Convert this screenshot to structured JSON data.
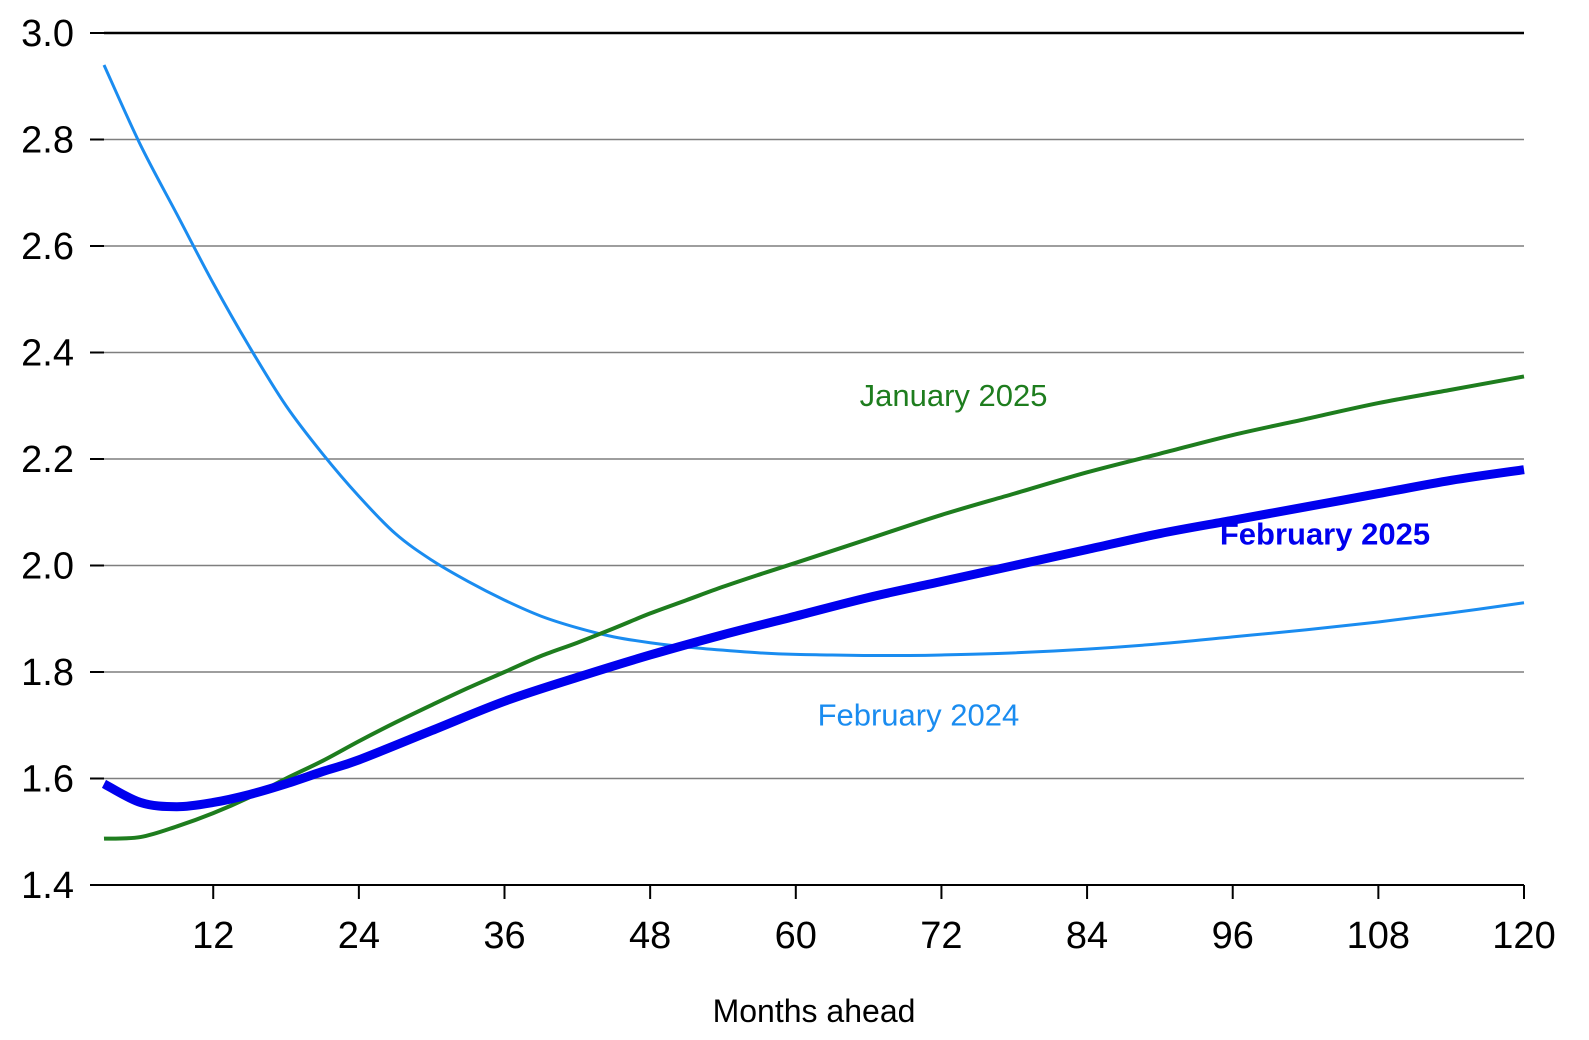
{
  "chart_data": {
    "type": "line",
    "title": "",
    "xlabel": "Months ahead",
    "ylabel": "",
    "xlim": [
      3,
      120
    ],
    "ylim": [
      1.4,
      3.0
    ],
    "x_ticks": [
      12,
      24,
      36,
      48,
      60,
      72,
      84,
      96,
      108,
      120
    ],
    "x_tick_labels": [
      "12",
      "24",
      "36",
      "48",
      "60",
      "72",
      "84",
      "96",
      "108",
      "120"
    ],
    "y_ticks": [
      1.4,
      1.6,
      1.8,
      2.0,
      2.2,
      2.4,
      2.6,
      2.8,
      3.0
    ],
    "y_tick_labels": [
      "1.4",
      "1.6",
      "1.8",
      "2.0",
      "2.2",
      "2.4",
      "2.6",
      "2.8",
      "3.0"
    ],
    "grid": true,
    "legend": "inline labels",
    "series": [
      {
        "name": "February 2024",
        "color": "#1a8cf0",
        "emphasis": "thin",
        "x": [
          3,
          6,
          9,
          12,
          15,
          18,
          21,
          24,
          27,
          30,
          33,
          36,
          39,
          42,
          45,
          48,
          51,
          54,
          57,
          60,
          63,
          66,
          69,
          72,
          78,
          84,
          90,
          96,
          102,
          108,
          114,
          120
        ],
        "values": [
          2.94,
          2.79,
          2.66,
          2.53,
          2.41,
          2.3,
          2.21,
          2.13,
          2.06,
          2.01,
          1.97,
          1.935,
          1.905,
          1.883,
          1.866,
          1.855,
          1.847,
          1.841,
          1.836,
          1.833,
          1.832,
          1.831,
          1.831,
          1.832,
          1.836,
          1.843,
          1.853,
          1.866,
          1.879,
          1.894,
          1.911,
          1.93
        ]
      },
      {
        "name": "January 2025",
        "color": "#1e7d1e",
        "emphasis": "medium",
        "x": [
          3,
          6,
          9,
          12,
          15,
          18,
          21,
          24,
          27,
          30,
          33,
          36,
          39,
          42,
          45,
          48,
          51,
          54,
          57,
          60,
          66,
          72,
          78,
          84,
          90,
          96,
          102,
          108,
          114,
          120
        ],
        "values": [
          1.487,
          1.49,
          1.51,
          1.535,
          1.565,
          1.6,
          1.633,
          1.67,
          1.705,
          1.738,
          1.77,
          1.8,
          1.83,
          1.855,
          1.882,
          1.91,
          1.935,
          1.96,
          1.983,
          2.005,
          2.05,
          2.095,
          2.135,
          2.175,
          2.21,
          2.245,
          2.275,
          2.305,
          2.33,
          2.355
        ]
      },
      {
        "name": "February 2025",
        "color": "#0000ee",
        "emphasis": "thick",
        "x": [
          3,
          6,
          9,
          12,
          15,
          18,
          21,
          24,
          30,
          36,
          42,
          48,
          54,
          60,
          66,
          72,
          78,
          84,
          90,
          96,
          102,
          108,
          114,
          120
        ],
        "values": [
          1.59,
          1.555,
          1.547,
          1.555,
          1.57,
          1.59,
          1.613,
          1.635,
          1.69,
          1.745,
          1.79,
          1.832,
          1.87,
          1.905,
          1.94,
          1.97,
          2.0,
          2.03,
          2.06,
          2.085,
          2.11,
          2.135,
          2.16,
          2.18
        ]
      }
    ],
    "annotations": [
      {
        "text": "January 2025",
        "series": "January 2025",
        "x": 73,
        "y": 2.32,
        "bold": false
      },
      {
        "text": "February 2025",
        "series": "February 2025",
        "x": 103.6,
        "y": 2.06,
        "bold": true
      },
      {
        "text": "February 2024",
        "series": "February 2024",
        "x": 70.1,
        "y": 1.72,
        "bold": false
      }
    ]
  }
}
